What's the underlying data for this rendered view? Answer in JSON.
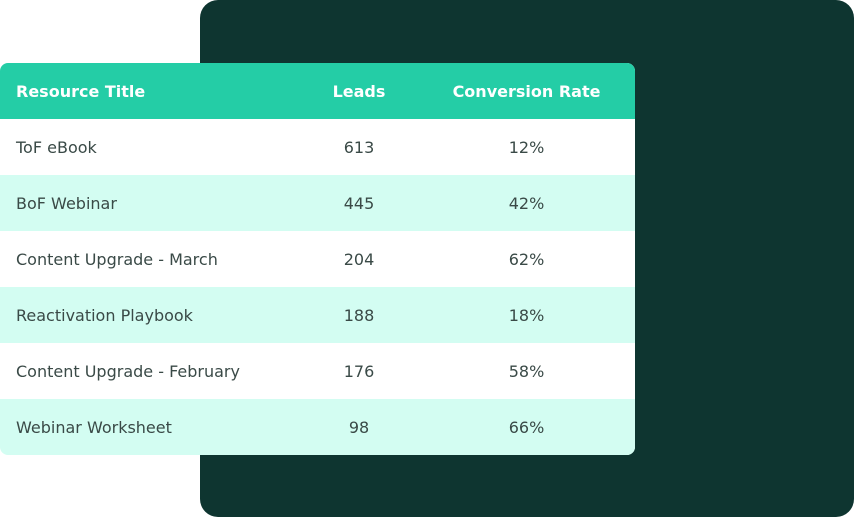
{
  "table": {
    "headers": {
      "title": "Resource Title",
      "leads": "Leads",
      "conversion_rate": "Conversion Rate"
    },
    "rows": [
      {
        "title": "ToF eBook",
        "leads": "613",
        "conversion_rate": "12%"
      },
      {
        "title": "BoF Webinar",
        "leads": "445",
        "conversion_rate": "42%"
      },
      {
        "title": "Content Upgrade - March",
        "leads": "204",
        "conversion_rate": "62%"
      },
      {
        "title": "Reactivation Playbook",
        "leads": "188",
        "conversion_rate": "18%"
      },
      {
        "title": "Content Upgrade - February",
        "leads": "176",
        "conversion_rate": "58%"
      },
      {
        "title": "Webinar Worksheet",
        "leads": "98",
        "conversion_rate": "66%"
      }
    ]
  },
  "colors": {
    "header_bg": "#24cda6",
    "alt_row_bg": "#d3fdf2",
    "backdrop": "#0e3530"
  }
}
